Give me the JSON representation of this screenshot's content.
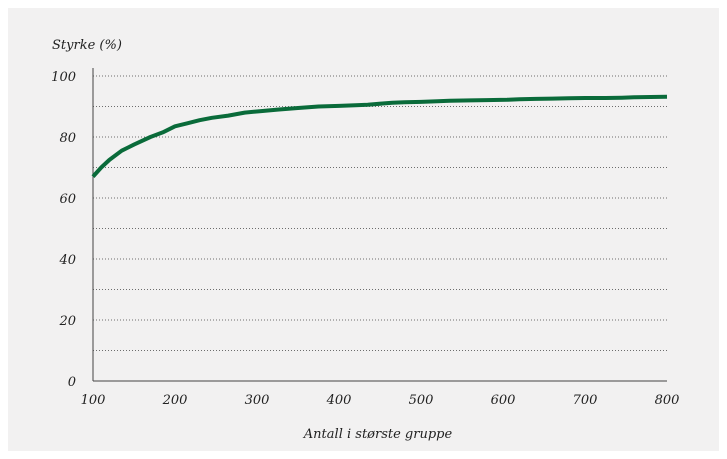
{
  "chart_data": {
    "type": "line",
    "title": "",
    "ylabel": "Styrke (%)",
    "xlabel": "Antall i største gruppe",
    "xlim": [
      100,
      800
    ],
    "ylim": [
      0,
      100
    ],
    "x_ticks": [
      100,
      200,
      300,
      400,
      500,
      600,
      700,
      800
    ],
    "y_ticks": [
      0,
      20,
      40,
      60,
      80,
      100
    ],
    "y_gridlines": [
      10,
      20,
      30,
      40,
      50,
      60,
      70,
      80,
      90,
      100
    ],
    "grid": true,
    "legend": "none",
    "series_color": "#0a6b3a",
    "series": [
      {
        "x": [
          100,
          110,
          120,
          135,
          150,
          170,
          185,
          200,
          215,
          230,
          245,
          265,
          285,
          305,
          325,
          350,
          375,
          400,
          420,
          435,
          455,
          465,
          480,
          500,
          520,
          535,
          560,
          580,
          605,
          620,
          640,
          660,
          680,
          700,
          725,
          745,
          760,
          780,
          800
        ],
        "y": [
          67,
          70,
          72.5,
          75.5,
          77.5,
          80,
          81.5,
          83.5,
          84.5,
          85.5,
          86.3,
          87,
          88,
          88.5,
          89,
          89.5,
          90,
          90.2,
          90.4,
          90.6,
          91,
          91.2,
          91.4,
          91.5,
          91.7,
          91.9,
          92,
          92.1,
          92.2,
          92.4,
          92.5,
          92.6,
          92.7,
          92.8,
          92.8,
          92.9,
          93,
          93.1,
          93.2
        ]
      }
    ]
  }
}
